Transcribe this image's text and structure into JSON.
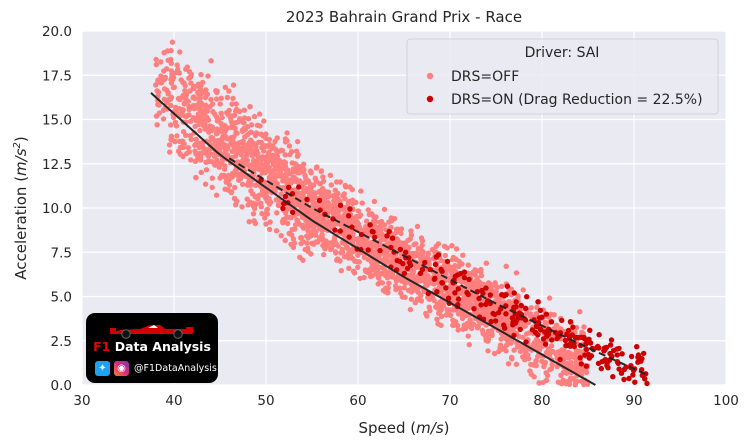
{
  "chart_data": {
    "type": "scatter",
    "title": "2023 Bahrain Grand Prix - Race",
    "xlabel_main": "Speed (",
    "xlabel_unit": "m/s",
    "xlabel_close": ")",
    "ylabel_main": "Acceleration (",
    "ylabel_unit": "m/s",
    "ylabel_exp": "2",
    "ylabel_close": ")",
    "xlim": [
      30,
      100
    ],
    "ylim": [
      0,
      20
    ],
    "xticks": [
      "30",
      "40",
      "50",
      "60",
      "70",
      "80",
      "90",
      "100"
    ],
    "yticks": [
      "0.0",
      "2.5",
      "5.0",
      "7.5",
      "10.0",
      "12.5",
      "15.0",
      "17.5",
      "20.0"
    ],
    "grid": true,
    "legend": {
      "title": "Driver: SAI",
      "position": "top-right",
      "entries": [
        "DRS=OFF",
        "DRS=ON (Drag Reduction = 22.5%)"
      ]
    },
    "series": [
      {
        "name": "DRS=OFF",
        "color": "#ff7f7f",
        "marker": "dot",
        "x_range": [
          37,
          86
        ],
        "trend": [
          [
            37.5,
            16.5
          ],
          [
            45,
            13.0
          ],
          [
            55,
            9.3
          ],
          [
            65,
            6.1
          ],
          [
            75,
            3.2
          ],
          [
            85.8,
            0.0
          ]
        ],
        "trend_style": "solid",
        "trend_color": "#262626"
      },
      {
        "name": "DRS=ON (Drag Reduction = 22.5%)",
        "color": "#cc0000",
        "marker": "dot",
        "x_range": [
          45,
          91
        ],
        "trend": [
          [
            46,
            12.8
          ],
          [
            55,
            10.0
          ],
          [
            65,
            7.3
          ],
          [
            75,
            4.6
          ],
          [
            85,
            2.1
          ],
          [
            91.3,
            0.6
          ]
        ],
        "trend_style": "dashed",
        "trend_color": "#262626"
      }
    ]
  },
  "badge": {
    "f1": "F1",
    "title": "Data Analysis",
    "twitter_icon": "twitter-icon",
    "instagram_icon": "instagram-icon",
    "handle": "@F1DataAnalysis"
  }
}
